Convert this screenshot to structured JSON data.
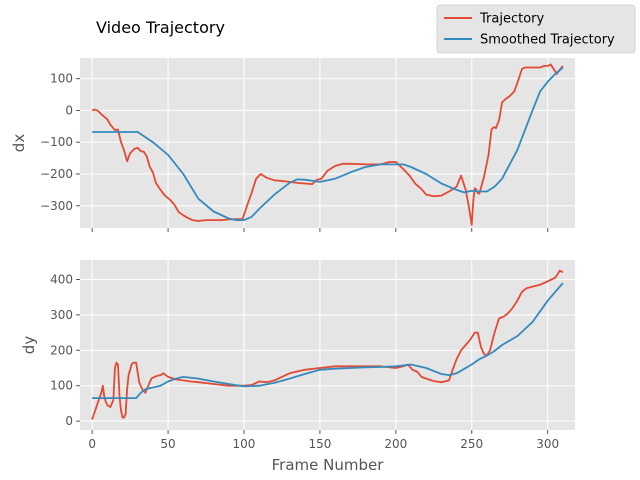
{
  "chart_data": {
    "type": "line",
    "title": "Video Trajectory",
    "xlabel": "Frame Number",
    "xlim": [
      -8,
      318
    ],
    "xticks": [
      0,
      50,
      100,
      150,
      200,
      250,
      300
    ],
    "grid": true,
    "legend": {
      "placement": "top-right",
      "entries": [
        "Trajectory",
        "Smoothed Trajectory"
      ]
    },
    "colors": {
      "Trajectory": "#E24A33",
      "Smoothed Trajectory": "#348ABD",
      "panel_bg": "#E5E5E5",
      "grid": "#FFFFFF"
    },
    "subplots": [
      {
        "ylabel": "dx",
        "ylim": [
          -370,
          165
        ],
        "yticks": [
          100,
          0,
          -100,
          -200,
          -300
        ],
        "series": [
          {
            "name": "Trajectory",
            "x": [
              0,
              2,
              4,
              6,
              8,
              10,
              12,
              15,
              17,
              19,
              21,
              23,
              25,
              28,
              30,
              32,
              34,
              36,
              38,
              40,
              42,
              45,
              48,
              51,
              54,
              57,
              60,
              63,
              66,
              70,
              75,
              80,
              85,
              90,
              95,
              99,
              102,
              105,
              108,
              111,
              115,
              120,
              125,
              130,
              135,
              140,
              145,
              148,
              151,
              155,
              160,
              165,
              170,
              180,
              190,
              195,
              200,
              205,
              209,
              213,
              217,
              220,
              225,
              230,
              235,
              240,
              243,
              246,
              248,
              250,
              251,
              252,
              253,
              254,
              255,
              258,
              261,
              263,
              264,
              265,
              266,
              268,
              270,
              272,
              275,
              278,
              281,
              283,
              285,
              290,
              295,
              298,
              300,
              302,
              304,
              306,
              308,
              310
            ],
            "y": [
              0,
              3,
              -2,
              -12,
              -20,
              -28,
              -45,
              -62,
              -60,
              -100,
              -125,
              -160,
              -135,
              -120,
              -118,
              -128,
              -130,
              -145,
              -178,
              -195,
              -228,
              -250,
              -268,
              -280,
              -295,
              -320,
              -330,
              -338,
              -345,
              -348,
              -345,
              -345,
              -345,
              -343,
              -342,
              -342,
              -300,
              -260,
              -215,
              -200,
              -212,
              -220,
              -222,
              -225,
              -228,
              -230,
              -232,
              -218,
              -215,
              -190,
              -175,
              -168,
              -168,
              -170,
              -170,
              -163,
              -162,
              -185,
              -205,
              -232,
              -248,
              -265,
              -270,
              -268,
              -255,
              -240,
              -205,
              -250,
              -300,
              -360,
              -283,
              -245,
              -250,
              -260,
              -262,
              -210,
              -140,
              -60,
              -55,
              -52,
              -56,
              -30,
              25,
              35,
              45,
              60,
              100,
              130,
              135,
              135,
              135,
              140,
              140,
              145,
              130,
              115,
              128,
              140
            ]
          },
          {
            "name": "Smoothed Trajectory",
            "x": [
              0,
              10,
              20,
              30,
              40,
              50,
              60,
              70,
              80,
              90,
              95,
              100,
              105,
              110,
              120,
              130,
              135,
              140,
              150,
              160,
              170,
              180,
              190,
              200,
              205,
              210,
              220,
              230,
              240,
              245,
              250,
              255,
              260,
              265,
              270,
              280,
              290,
              295,
              300,
              305,
              310
            ],
            "y": [
              -68,
              -68,
              -68,
              -68,
              -100,
              -140,
              -200,
              -278,
              -318,
              -340,
              -345,
              -345,
              -335,
              -310,
              -265,
              -228,
              -217,
              -218,
              -225,
              -215,
              -195,
              -178,
              -170,
              -170,
              -170,
              -178,
              -200,
              -230,
              -250,
              -258,
              -253,
              -255,
              -255,
              -240,
              -215,
              -125,
              0,
              60,
              90,
              115,
              135
            ]
          }
        ]
      },
      {
        "ylabel": "dy",
        "ylim": [
          -25,
          455
        ],
        "yticks": [
          0,
          100,
          200,
          300,
          400
        ],
        "series": [
          {
            "name": "Trajectory",
            "x": [
              0,
              2,
              4,
              6,
              7,
              8,
              9,
              10,
              12,
              14,
              15,
              16,
              17,
              18,
              19,
              20,
              21,
              22,
              23,
              24,
              25,
              26,
              27,
              29,
              31,
              33,
              35,
              37,
              39,
              41,
              43,
              45,
              47,
              50,
              55,
              60,
              65,
              70,
              80,
              90,
              100,
              105,
              110,
              115,
              120,
              130,
              140,
              150,
              160,
              170,
              180,
              190,
              200,
              205,
              208,
              211,
              214,
              217,
              220,
              225,
              230,
              235,
              237,
              240,
              243,
              246,
              249,
              252,
              254,
              256,
              258,
              260,
              262,
              265,
              268,
              271,
              274,
              277,
              280,
              283,
              286,
              290,
              295,
              300,
              305,
              308,
              310
            ],
            "y": [
              5,
              30,
              55,
              80,
              100,
              70,
              55,
              45,
              40,
              60,
              150,
              165,
              160,
              70,
              30,
              10,
              10,
              20,
              90,
              130,
              145,
              160,
              165,
              165,
              110,
              90,
              80,
              100,
              120,
              125,
              128,
              130,
              135,
              125,
              118,
              115,
              112,
              110,
              105,
              100,
              100,
              102,
              112,
              110,
              115,
              135,
              145,
              150,
              155,
              155,
              155,
              155,
              150,
              155,
              160,
              145,
              140,
              125,
              120,
              113,
              110,
              115,
              140,
              175,
              200,
              215,
              230,
              250,
              250,
              210,
              190,
              185,
              200,
              250,
              290,
              295,
              305,
              320,
              340,
              365,
              375,
              380,
              385,
              395,
              405,
              425,
              420
            ]
          },
          {
            "name": "Smoothed Trajectory",
            "x": [
              0,
              10,
              20,
              29,
              32,
              35,
              40,
              45,
              50,
              55,
              60,
              70,
              80,
              90,
              100,
              110,
              120,
              130,
              140,
              150,
              160,
              170,
              180,
              190,
              200,
              210,
              220,
              230,
              235,
              240,
              250,
              255,
              260,
              265,
              270,
              280,
              290,
              300,
              310
            ],
            "y": [
              65,
              65,
              65,
              65,
              80,
              90,
              95,
              100,
              112,
              120,
              125,
              120,
              112,
              105,
              98,
              100,
              108,
              120,
              133,
              145,
              148,
              150,
              152,
              153,
              155,
              160,
              150,
              133,
              130,
              135,
              160,
              175,
              185,
              198,
              215,
              240,
              280,
              340,
              390
            ]
          }
        ]
      }
    ]
  }
}
